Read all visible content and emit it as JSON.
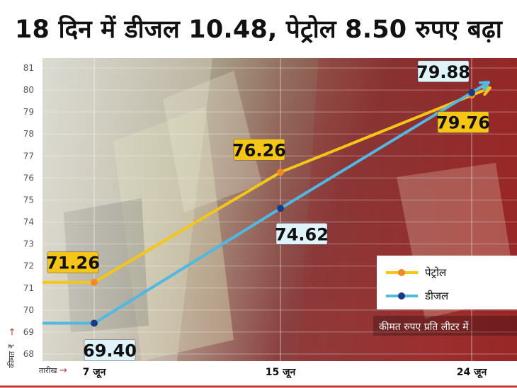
{
  "title": "18 दिन में डीजल 10.48, पेट्रोल 8.50 रुपए बढ़ा",
  "chart_data": {
    "type": "line",
    "x": [
      "7 जून",
      "15 जून",
      "24 जून"
    ],
    "xlabel": "तारीख",
    "ylabel": "कीमत ₹",
    "ylim": [
      68,
      81
    ],
    "yticks": [
      68,
      69,
      70,
      71,
      72,
      73,
      74,
      75,
      76,
      77,
      78,
      79,
      80,
      81
    ],
    "grid": true,
    "legend_position": "bottom-right",
    "unit_note": "कीमत रुपए प्रति लीटर में",
    "series": [
      {
        "name": "पेट्रोल",
        "color": "#f5c518",
        "marker_color": "#f08a24",
        "values": [
          71.26,
          76.26,
          79.76
        ],
        "labels": [
          "71.26",
          "76.26",
          "79.76"
        ]
      },
      {
        "name": "डीजल",
        "color": "#4fb8e3",
        "marker_color": "#1b3a82",
        "values": [
          69.4,
          74.62,
          79.88
        ],
        "labels": [
          "69.40",
          "74.62",
          "79.88"
        ]
      }
    ]
  }
}
